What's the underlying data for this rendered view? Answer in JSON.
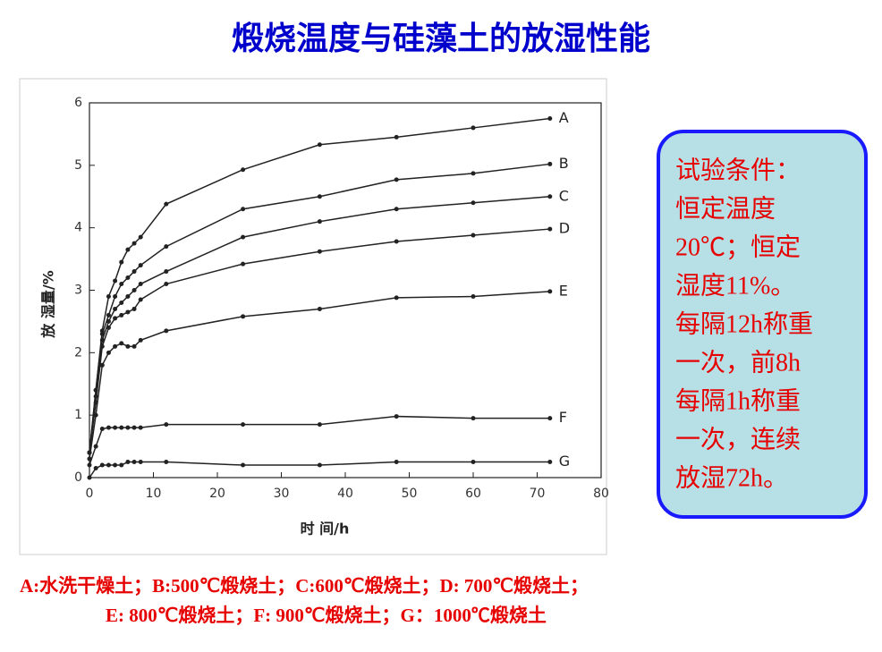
{
  "title": "煅烧温度与硅藻土的放湿性能",
  "chart_data": {
    "type": "line",
    "xlabel": "时 间/h",
    "ylabel": "放 湿量/%",
    "x": [
      0,
      1,
      2,
      3,
      4,
      5,
      6,
      7,
      8,
      12,
      24,
      36,
      48,
      60,
      72
    ],
    "xlim": [
      0,
      80
    ],
    "xticks": [
      0,
      10,
      20,
      30,
      40,
      50,
      60,
      70,
      80
    ],
    "ylim": [
      0,
      6
    ],
    "yticks": [
      0,
      1,
      2,
      3,
      4,
      5,
      6
    ],
    "color": "#222222",
    "series": [
      {
        "name": "A",
        "values": [
          0.4,
          1.4,
          2.35,
          2.9,
          3.15,
          3.45,
          3.65,
          3.75,
          3.85,
          4.38,
          4.93,
          5.33,
          5.45,
          5.6,
          5.75
        ]
      },
      {
        "name": "B",
        "values": [
          0.4,
          1.4,
          2.3,
          2.6,
          2.9,
          3.1,
          3.2,
          3.3,
          3.4,
          3.7,
          4.3,
          4.5,
          4.77,
          4.87,
          5.02
        ]
      },
      {
        "name": "C",
        "values": [
          0.4,
          1.3,
          2.2,
          2.5,
          2.7,
          2.8,
          2.9,
          3.0,
          3.1,
          3.3,
          3.85,
          4.1,
          4.3,
          4.4,
          4.5
        ]
      },
      {
        "name": "D",
        "values": [
          0.4,
          1.2,
          2.1,
          2.4,
          2.55,
          2.6,
          2.65,
          2.7,
          2.85,
          3.1,
          3.42,
          3.62,
          3.78,
          3.88,
          3.98
        ]
      },
      {
        "name": "E",
        "values": [
          0.3,
          1.0,
          1.8,
          2.0,
          2.1,
          2.15,
          2.1,
          2.1,
          2.2,
          2.35,
          2.58,
          2.7,
          2.88,
          2.9,
          2.98
        ]
      },
      {
        "name": "F",
        "values": [
          0.2,
          0.5,
          0.78,
          0.8,
          0.8,
          0.8,
          0.8,
          0.8,
          0.8,
          0.85,
          0.85,
          0.85,
          0.98,
          0.95,
          0.95
        ]
      },
      {
        "name": "G",
        "values": [
          0,
          0.15,
          0.2,
          0.2,
          0.2,
          0.2,
          0.25,
          0.25,
          0.25,
          0.25,
          0.2,
          0.2,
          0.25,
          0.25,
          0.25
        ]
      }
    ]
  },
  "note": {
    "lines": [
      "试验条件：",
      "恒定温度",
      "20℃；恒定",
      "湿度11%。",
      "每隔12h称重",
      "一次，前8h",
      "每隔1h称重",
      "一次，连续",
      "放湿72h。"
    ]
  },
  "caption": {
    "lines": [
      "A:水洗干燥土；B:500℃煅烧土；C:600℃煅烧土；D: 700℃煅烧土；",
      "E: 800℃煅烧土；F: 900℃煅烧土；G：1000℃煅烧土"
    ]
  }
}
